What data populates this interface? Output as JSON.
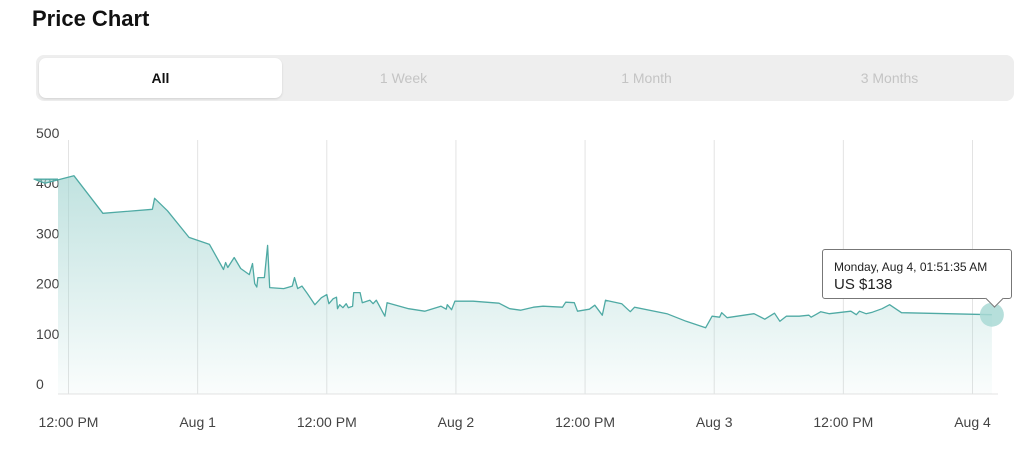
{
  "page": {
    "title": "Price Chart"
  },
  "tabs": [
    {
      "label": "All",
      "active": true
    },
    {
      "label": "1 Week",
      "active": false
    },
    {
      "label": "1 Month",
      "active": false
    },
    {
      "label": "3 Months",
      "active": false
    }
  ],
  "tooltip": {
    "date": "Monday, Aug 4, 01:51:35 AM",
    "value": "US $138"
  },
  "colors": {
    "line": "#4faaa4",
    "area": "#9fd3cf",
    "grid": "#e3e3e3",
    "highlight": "#a9d9d5"
  },
  "chart_data": {
    "type": "area",
    "title": "",
    "xlabel": "",
    "ylabel": "",
    "ylim": [
      0,
      500
    ],
    "y_ticks": [
      0,
      100,
      200,
      300,
      400,
      500
    ],
    "x_ticks": [
      "12:00 PM",
      "Aug 1",
      "12:00 PM",
      "Aug 2",
      "12:00 PM",
      "Aug 3",
      "12:00 PM",
      "Aug 4"
    ],
    "x_tick_hours": [
      12,
      24,
      36,
      48,
      60,
      72,
      84,
      96
    ],
    "grid": "vertical",
    "legend": "none",
    "highlighted_point": {
      "hour": 97.8,
      "value": 138
    },
    "series": [
      {
        "points": [
          [
            8.8,
            408
          ],
          [
            9.8,
            400
          ],
          [
            12.5,
            415
          ],
          [
            15.2,
            340
          ],
          [
            19.8,
            348
          ],
          [
            20.0,
            370
          ],
          [
            21.2,
            345
          ],
          [
            23.2,
            292
          ],
          [
            25.1,
            278
          ],
          [
            26.4,
            228
          ],
          [
            26.6,
            242
          ],
          [
            26.8,
            232
          ],
          [
            27.4,
            252
          ],
          [
            28.0,
            230
          ],
          [
            28.8,
            218
          ],
          [
            29.1,
            240
          ],
          [
            29.3,
            200
          ],
          [
            29.5,
            193
          ],
          [
            29.6,
            212
          ],
          [
            30.2,
            212
          ],
          [
            30.5,
            276
          ],
          [
            30.7,
            192
          ],
          [
            32.0,
            190
          ],
          [
            32.8,
            195
          ],
          [
            33.0,
            212
          ],
          [
            33.3,
            190
          ],
          [
            33.7,
            195
          ],
          [
            34.2,
            180
          ],
          [
            34.9,
            158
          ],
          [
            35.5,
            172
          ],
          [
            36.0,
            178
          ],
          [
            36.2,
            160
          ],
          [
            36.6,
            170
          ],
          [
            36.9,
            173
          ],
          [
            37.0,
            150
          ],
          [
            37.2,
            158
          ],
          [
            37.5,
            152
          ],
          [
            37.8,
            160
          ],
          [
            38.0,
            152
          ],
          [
            38.4,
            155
          ],
          [
            38.5,
            182
          ],
          [
            39.1,
            182
          ],
          [
            39.3,
            162
          ],
          [
            40.0,
            167
          ],
          [
            40.3,
            160
          ],
          [
            40.6,
            167
          ],
          [
            41.4,
            135
          ],
          [
            41.6,
            162
          ],
          [
            43.6,
            150
          ],
          [
            45.1,
            145
          ],
          [
            46.6,
            155
          ],
          [
            47.1,
            149
          ],
          [
            47.2,
            158
          ],
          [
            47.6,
            148
          ],
          [
            47.9,
            165
          ],
          [
            49.6,
            165
          ],
          [
            52.0,
            161
          ],
          [
            53.0,
            150
          ],
          [
            54.0,
            147
          ],
          [
            55.2,
            153
          ],
          [
            56.1,
            155
          ],
          [
            57.9,
            153
          ],
          [
            58.2,
            163
          ],
          [
            59.0,
            162
          ],
          [
            59.3,
            145
          ],
          [
            60.4,
            149
          ],
          [
            60.9,
            157
          ],
          [
            61.6,
            137
          ],
          [
            61.9,
            167
          ],
          [
            63.4,
            160
          ],
          [
            63.9,
            150
          ],
          [
            64.2,
            144
          ],
          [
            64.6,
            153
          ],
          [
            67.6,
            140
          ],
          [
            69.4,
            125
          ],
          [
            71.2,
            112
          ],
          [
            71.8,
            135
          ],
          [
            72.5,
            133
          ],
          [
            72.7,
            142
          ],
          [
            73.2,
            132
          ],
          [
            75.7,
            140
          ],
          [
            76.7,
            129
          ],
          [
            77.6,
            141
          ],
          [
            78.1,
            125
          ],
          [
            78.7,
            135
          ],
          [
            79.9,
            135
          ],
          [
            80.8,
            137
          ],
          [
            81.0,
            133
          ],
          [
            81.5,
            139
          ],
          [
            81.9,
            144
          ],
          [
            82.7,
            140
          ],
          [
            84.7,
            145
          ],
          [
            85.2,
            138
          ],
          [
            85.5,
            145
          ],
          [
            86.1,
            140
          ],
          [
            86.7,
            143
          ],
          [
            87.6,
            150
          ],
          [
            88.3,
            158
          ],
          [
            89.4,
            142
          ],
          [
            97.8,
            138
          ]
        ]
      }
    ]
  }
}
